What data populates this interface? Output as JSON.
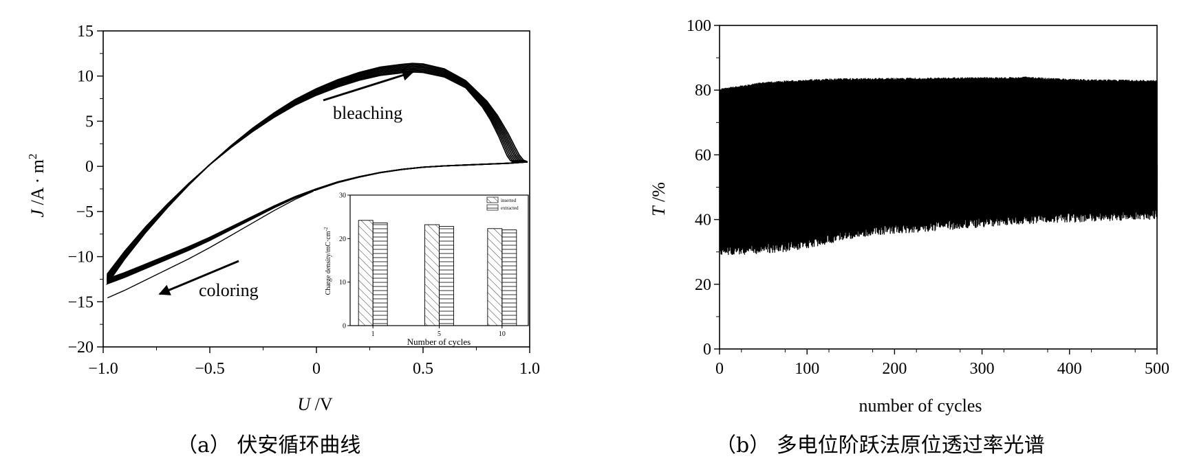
{
  "chart_data": [
    {
      "type": "line",
      "panel": "a",
      "caption": "（a） 伏安循环曲线",
      "xlabel_italic": "U",
      "xlabel_rest": " /V",
      "ylabel_italic": "J",
      "ylabel_rest": " /A · m",
      "ylabel_sup": "2",
      "xlim": [
        -1.0,
        1.0
      ],
      "ylim": [
        -20,
        15
      ],
      "xticks": [
        -1.0,
        -0.5,
        0,
        0.5,
        1.0
      ],
      "xtick_labels": [
        "−1.0",
        "−0.5",
        "0",
        "0.5",
        "1.0"
      ],
      "yticks": [
        -20,
        -15,
        -10,
        -5,
        0,
        5,
        10,
        15
      ],
      "ytick_labels": [
        "−20",
        "−15",
        "−10",
        "−5",
        "0",
        "5",
        "10",
        "15"
      ],
      "annotations": [
        "bleaching",
        "coloring"
      ],
      "series": [
        {
          "branch": "upper (anodic, bleaching)",
          "x": [
            -0.98,
            -0.9,
            -0.8,
            -0.7,
            -0.6,
            -0.5,
            -0.4,
            -0.3,
            -0.2,
            -0.1,
            0.0,
            0.1,
            0.2,
            0.3,
            0.4,
            0.45,
            0.5,
            0.6,
            0.7,
            0.8,
            0.85,
            0.9,
            0.93,
            0.95,
            0.97,
            0.99
          ],
          "y": [
            -13.0,
            -10.3,
            -7.3,
            -4.6,
            -2.1,
            0.2,
            2.3,
            4.2,
            5.9,
            7.4,
            8.6,
            9.6,
            10.4,
            11.0,
            11.3,
            11.4,
            11.35,
            10.8,
            9.5,
            7.2,
            5.6,
            3.6,
            2.2,
            1.3,
            0.7,
            0.5
          ]
        },
        {
          "branch": "lower (cathodic, coloring)",
          "x": [
            0.99,
            0.9,
            0.8,
            0.7,
            0.6,
            0.5,
            0.4,
            0.3,
            0.2,
            0.1,
            0.0,
            -0.1,
            -0.2,
            -0.3,
            -0.4,
            -0.5,
            -0.6,
            -0.7,
            -0.8,
            -0.9,
            -0.98
          ],
          "y": [
            0.5,
            0.35,
            0.25,
            0.15,
            0.05,
            -0.1,
            -0.35,
            -0.7,
            -1.2,
            -1.8,
            -2.6,
            -3.5,
            -4.6,
            -5.8,
            -7.0,
            -8.2,
            -9.3,
            -10.3,
            -11.3,
            -12.3,
            -13.0
          ]
        }
      ],
      "inset": {
        "type": "bar",
        "xlabel": "Number of cycles",
        "ylabel": "Charge density/mC·cm",
        "ylabel_sup": "-2",
        "categories": [
          "1",
          "5",
          "10"
        ],
        "ylim": [
          0,
          30
        ],
        "yticks": [
          0,
          10,
          20,
          30
        ],
        "ytick_labels": [
          "0",
          "10",
          "20",
          "30"
        ],
        "series": [
          {
            "name": "inserted",
            "values": [
              24.2,
              23.2,
              22.3
            ]
          },
          {
            "name": "extracted",
            "values": [
              23.6,
              22.8,
              22.0
            ]
          }
        ]
      }
    },
    {
      "type": "line",
      "panel": "b",
      "caption": "（b） 多电位阶跃法原位透过率光谱",
      "xlabel": "number of cycles",
      "ylabel_italic": "T",
      "ylabel_rest": " /%",
      "xlim": [
        0,
        500
      ],
      "ylim": [
        0,
        100
      ],
      "xticks": [
        0,
        100,
        200,
        300,
        400,
        500
      ],
      "xtick_labels": [
        "0",
        "100",
        "200",
        "300",
        "400",
        "500"
      ],
      "yticks": [
        0,
        20,
        40,
        60,
        80,
        100
      ],
      "ytick_labels": [
        "0",
        "20",
        "40",
        "60",
        "80",
        "100"
      ],
      "envelope": {
        "x": [
          0,
          25,
          50,
          75,
          100,
          125,
          150,
          175,
          200,
          225,
          250,
          275,
          300,
          325,
          350,
          375,
          400,
          425,
          450,
          475,
          500
        ],
        "max": [
          80.5,
          81.5,
          82.5,
          83.0,
          83.3,
          83.6,
          83.7,
          83.8,
          83.8,
          83.8,
          83.9,
          84.0,
          84.0,
          84.0,
          84.2,
          83.8,
          83.5,
          83.4,
          83.3,
          83.2,
          83.1
        ],
        "min": [
          29.0,
          29.0,
          29.5,
          30.0,
          31.0,
          32.5,
          34.0,
          35.0,
          35.5,
          36.0,
          36.5,
          37.0,
          37.5,
          38.0,
          38.5,
          38.8,
          39.0,
          39.3,
          39.5,
          39.8,
          40.0
        ]
      }
    }
  ]
}
